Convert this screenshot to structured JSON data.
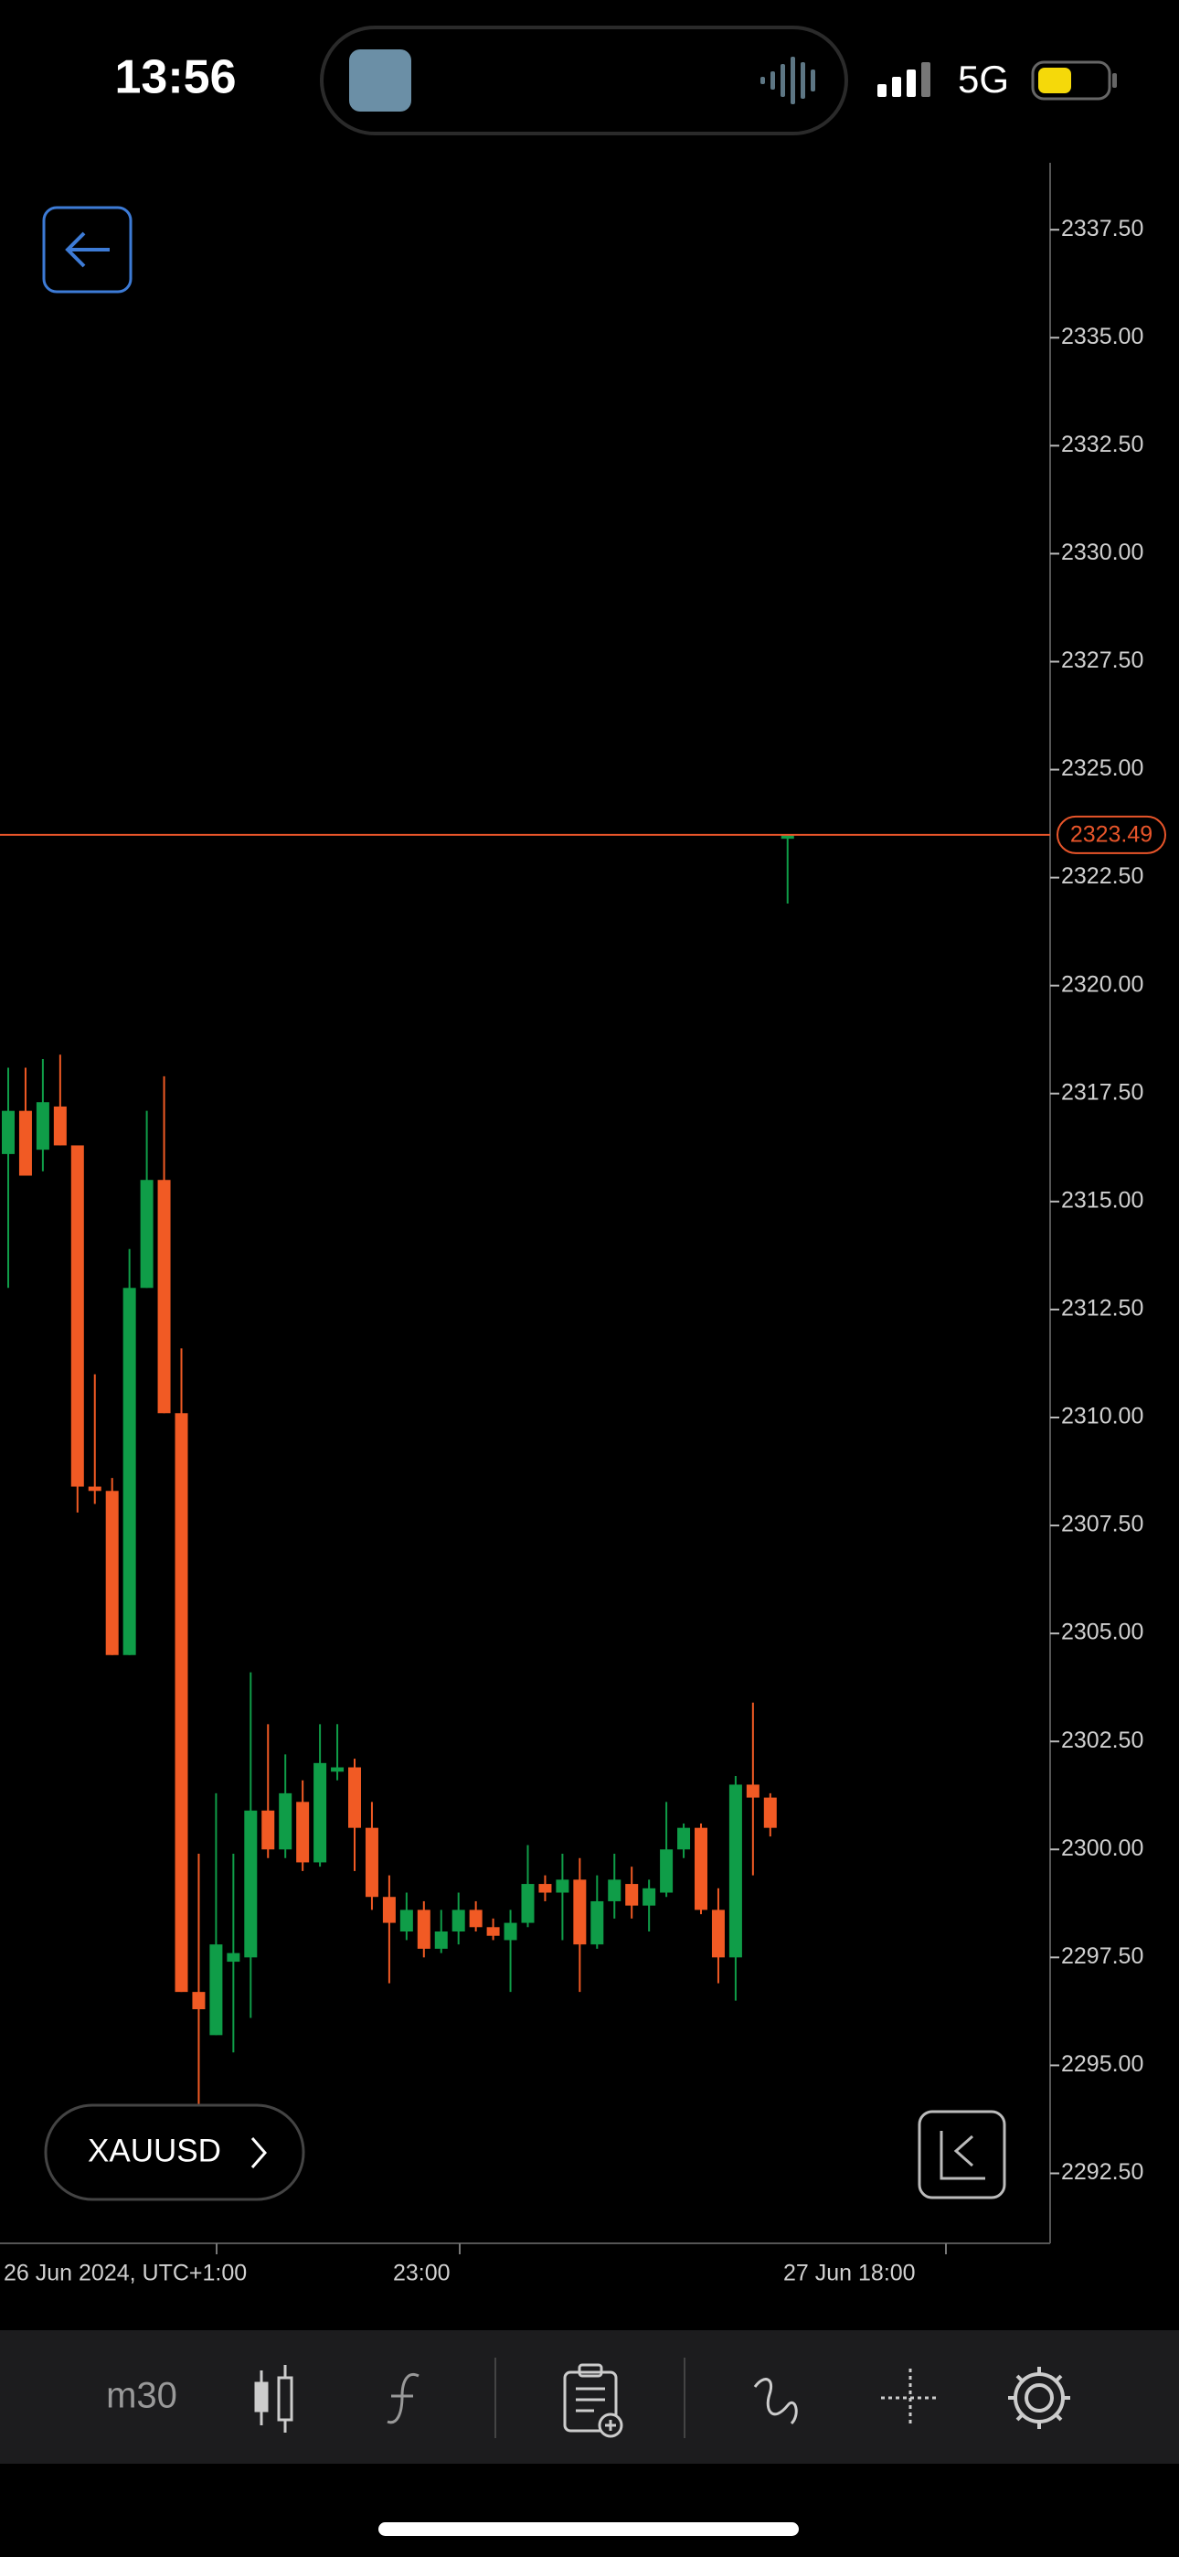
{
  "status_bar": {
    "time": "13:56",
    "network": "5G"
  },
  "symbol": "XAUUSD",
  "toolbar": {
    "timeframe": "m30"
  },
  "chart_data": {
    "type": "candlestick",
    "up_color": "#0f9d48",
    "down_color": "#f15a24",
    "ylim": [
      2290.88,
      2339.05
    ],
    "yticks": [
      {
        "value": 2292.5,
        "label": "2292.50"
      },
      {
        "value": 2295,
        "label": "2295.00"
      },
      {
        "value": 2297.5,
        "label": "2297.50"
      },
      {
        "value": 2300,
        "label": "2300.00"
      },
      {
        "value": 2302.5,
        "label": "2302.50"
      },
      {
        "value": 2305,
        "label": "2305.00"
      },
      {
        "value": 2307.5,
        "label": "2307.50"
      },
      {
        "value": 2310,
        "label": "2310.00"
      },
      {
        "value": 2312.5,
        "label": "2312.50"
      },
      {
        "value": 2315,
        "label": "2315.00"
      },
      {
        "value": 2317.5,
        "label": "2317.50"
      },
      {
        "value": 2320,
        "label": "2320.00"
      },
      {
        "value": 2322.5,
        "label": "2322.50"
      },
      {
        "value": 2325,
        "label": "2325.00"
      },
      {
        "value": 2327.5,
        "label": "2327.50"
      },
      {
        "value": 2330,
        "label": "2330.00"
      },
      {
        "value": 2332.5,
        "label": "2332.50"
      },
      {
        "value": 2335,
        "label": "2335.00"
      },
      {
        "value": 2337.5,
        "label": "2337.50"
      }
    ],
    "x_labels": [
      "26 Jun 2024, UTC+1:00",
      "23:00",
      "27 Jun 18:00"
    ],
    "current_price": 2323.49,
    "current_price_color": "#e8552a",
    "open": [
      2316.1,
      2317.1,
      2316.2,
      2317.2,
      2316.3,
      2308.4,
      2308.3,
      2304.5,
      2313.0,
      2315.5,
      2310.1,
      2296.7,
      2295.7,
      2297.4,
      2297.5,
      2300.9,
      2300.0,
      2301.1,
      2299.7,
      2301.8,
      2301.9,
      2300.5,
      2298.9,
      2298.1,
      2298.6,
      2297.7,
      2298.1,
      2298.6,
      2298.2,
      2297.9,
      2298.3,
      2299.2,
      2299.0,
      2299.3,
      2297.8,
      2298.8,
      2299.2,
      2298.7,
      2299.0,
      2300.0,
      2300.5,
      2298.6,
      2297.5,
      2301.5,
      2301.2,
      2323.4
    ],
    "high": [
      2318.1,
      2318.1,
      2318.3,
      2318.4,
      2316.3,
      2311.0,
      2308.6,
      2313.9,
      2317.1,
      2317.9,
      2311.6,
      2299.9,
      2301.3,
      2299.9,
      2304.1,
      2302.9,
      2302.2,
      2301.6,
      2302.9,
      2302.9,
      2302.1,
      2301.1,
      2299.4,
      2299.0,
      2298.8,
      2298.6,
      2299.0,
      2298.8,
      2298.4,
      2298.6,
      2300.1,
      2299.4,
      2299.9,
      2299.8,
      2299.4,
      2299.9,
      2299.6,
      2299.3,
      2301.1,
      2300.6,
      2300.6,
      2299.1,
      2301.7,
      2303.4,
      2301.3,
      2323.5
    ],
    "low": [
      2313.0,
      2315.6,
      2315.7,
      2316.3,
      2307.8,
      2308.0,
      2304.5,
      2304.5,
      2313.0,
      2310.1,
      2296.7,
      2293.7,
      2295.7,
      2295.3,
      2296.1,
      2299.8,
      2299.8,
      2299.5,
      2299.6,
      2301.6,
      2299.5,
      2298.6,
      2296.9,
      2297.9,
      2297.5,
      2297.6,
      2297.8,
      2298.1,
      2297.9,
      2296.7,
      2298.2,
      2298.8,
      2297.9,
      2296.7,
      2297.7,
      2298.4,
      2298.4,
      2298.1,
      2298.9,
      2299.8,
      2298.5,
      2296.9,
      2296.5,
      2299.4,
      2300.3,
      2321.9
    ],
    "close": [
      2317.1,
      2315.6,
      2317.3,
      2316.3,
      2308.4,
      2308.3,
      2304.5,
      2313.0,
      2315.5,
      2310.1,
      2296.7,
      2296.3,
      2297.8,
      2297.6,
      2300.9,
      2300.0,
      2301.3,
      2299.7,
      2302.0,
      2301.9,
      2300.5,
      2298.9,
      2298.3,
      2298.6,
      2297.7,
      2298.1,
      2298.6,
      2298.2,
      2298.0,
      2298.3,
      2299.2,
      2299.0,
      2299.3,
      2297.8,
      2298.8,
      2299.3,
      2298.7,
      2299.1,
      2300.0,
      2300.5,
      2298.6,
      2297.5,
      2301.5,
      2301.2,
      2300.5,
      2323.5
    ]
  }
}
